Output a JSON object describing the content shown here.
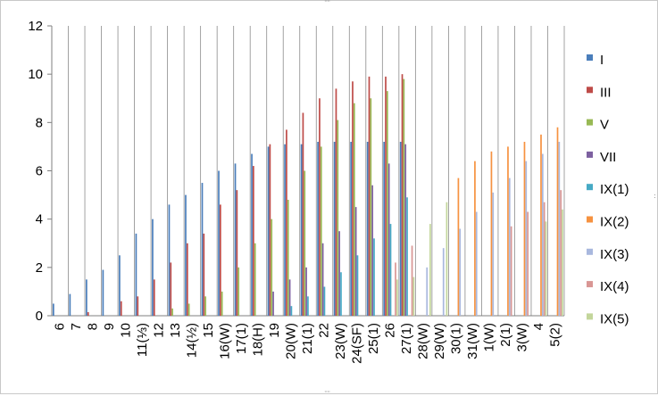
{
  "chart_data": {
    "type": "bar",
    "ylim": [
      0,
      12
    ],
    "yticks": [
      0,
      2,
      4,
      6,
      8,
      10,
      12
    ],
    "grid": "vertical",
    "legend_position": "right",
    "categories": [
      "6",
      "7",
      "8",
      "9",
      "10",
      "11(⅓)",
      "12",
      "13",
      "14(½)",
      "15",
      "16(W)",
      "17(1)",
      "18(H)",
      "19",
      "20(W)",
      "21(1)",
      "22",
      "23(W)",
      "24(SF)",
      "25(1)",
      "26",
      "27(1)",
      "28(W)",
      "29(W)",
      "30(1)",
      "31(W)",
      "1(W)",
      "2(1)",
      "3(W)",
      "4",
      "5(2)"
    ],
    "series": [
      {
        "name": "I",
        "color": "#4A7EBB",
        "values": [
          0.5,
          0.9,
          1.5,
          1.9,
          2.5,
          3.4,
          4.0,
          4.6,
          5.0,
          5.5,
          6.0,
          6.3,
          6.7,
          7.0,
          7.1,
          7.1,
          7.2,
          7.2,
          7.2,
          7.2,
          7.2,
          7.2,
          null,
          null,
          null,
          null,
          null,
          null,
          null,
          null,
          null
        ]
      },
      {
        "name": "III",
        "color": "#BE4B48",
        "values": [
          null,
          null,
          0.15,
          null,
          0.6,
          0.8,
          1.5,
          2.2,
          3.0,
          3.4,
          4.6,
          5.2,
          6.2,
          7.1,
          7.7,
          8.4,
          9.0,
          9.4,
          9.7,
          9.9,
          9.9,
          10.0,
          null,
          null,
          null,
          null,
          null,
          null,
          null,
          null,
          null
        ]
      },
      {
        "name": "V",
        "color": "#98B954",
        "values": [
          null,
          null,
          null,
          null,
          null,
          null,
          null,
          0.3,
          0.5,
          0.8,
          1.0,
          2.0,
          3.0,
          4.0,
          4.8,
          6.0,
          7.0,
          8.1,
          8.8,
          9.0,
          9.3,
          9.8,
          null,
          null,
          null,
          null,
          null,
          null,
          null,
          null,
          null
        ]
      },
      {
        "name": "VII",
        "color": "#7D60A0",
        "values": [
          null,
          null,
          null,
          null,
          null,
          null,
          null,
          null,
          null,
          null,
          null,
          null,
          null,
          1.0,
          1.5,
          2.0,
          3.0,
          3.5,
          4.5,
          5.4,
          6.3,
          7.1,
          null,
          null,
          null,
          null,
          null,
          null,
          null,
          null,
          null
        ]
      },
      {
        "name": "IX(1)",
        "color": "#46AAC5",
        "values": [
          null,
          null,
          null,
          null,
          null,
          null,
          null,
          null,
          null,
          null,
          null,
          null,
          null,
          null,
          0.4,
          0.8,
          1.2,
          1.8,
          2.5,
          3.2,
          3.8,
          4.9,
          null,
          null,
          null,
          null,
          null,
          null,
          null,
          null,
          null
        ]
      },
      {
        "name": "IX(2)",
        "color": "#F69240",
        "values": [
          null,
          null,
          null,
          null,
          null,
          null,
          null,
          null,
          null,
          null,
          null,
          null,
          null,
          null,
          null,
          null,
          null,
          null,
          null,
          null,
          null,
          null,
          null,
          null,
          5.7,
          6.4,
          6.8,
          7.0,
          7.2,
          7.5,
          7.8
        ]
      },
      {
        "name": "IX(3)",
        "color": "#A9B8DE",
        "values": [
          null,
          null,
          null,
          null,
          null,
          null,
          null,
          null,
          null,
          null,
          null,
          null,
          null,
          null,
          null,
          null,
          null,
          null,
          null,
          null,
          null,
          null,
          2.0,
          2.8,
          3.6,
          4.3,
          5.1,
          5.7,
          6.4,
          6.7,
          7.2
        ]
      },
      {
        "name": "IX(4)",
        "color": "#D99694",
        "values": [
          null,
          null,
          null,
          null,
          null,
          null,
          null,
          null,
          null,
          null,
          null,
          null,
          null,
          null,
          null,
          null,
          null,
          null,
          null,
          null,
          2.2,
          2.9,
          null,
          null,
          null,
          null,
          null,
          3.7,
          4.3,
          4.7,
          5.2
        ]
      },
      {
        "name": "IX(5)",
        "color": "#C3D69B",
        "values": [
          null,
          null,
          null,
          null,
          null,
          null,
          null,
          null,
          null,
          null,
          null,
          null,
          null,
          null,
          null,
          null,
          null,
          null,
          null,
          null,
          1.5,
          1.6,
          3.8,
          4.7,
          null,
          null,
          null,
          null,
          null,
          3.9,
          4.4
        ]
      }
    ]
  }
}
